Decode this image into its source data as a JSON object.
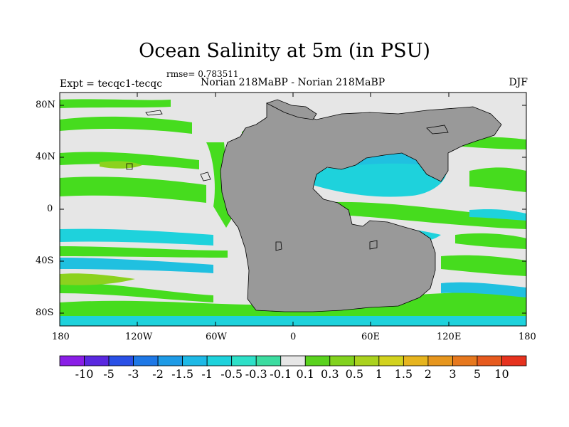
{
  "title": "Ocean Salinity at 5m (in PSU)",
  "rmse": "rmse= 0.783511",
  "left_header": "Expt = tecqc1-tecqc",
  "center_header": "Norian 218MaBP - Norian 218MaBP",
  "right_header": "DJF",
  "lat_labels": [
    "80N",
    "40N",
    "0",
    "40S",
    "80S"
  ],
  "lon_labels": [
    "180",
    "120W",
    "60W",
    "0",
    "60E",
    "120E",
    "180"
  ],
  "colorbar": {
    "labels": [
      "-10",
      "-5",
      "-3",
      "-2",
      "-1.5",
      "-1",
      "-0.5",
      "-0.3",
      "-0.1",
      "0.1",
      "0.3",
      "0.5",
      "1",
      "1.5",
      "2",
      "3",
      "5",
      "10"
    ],
    "colors": [
      "#8a1ee6",
      "#5a28e0",
      "#2a50e6",
      "#1e78e6",
      "#1e9be6",
      "#1eb9e6",
      "#1ed2dc",
      "#2ee0c8",
      "#3cdca0",
      "#e6e6e6",
      "#5ad21e",
      "#82d21e",
      "#aad21e",
      "#d2d21e",
      "#e6b41e",
      "#e6961e",
      "#e6781e",
      "#e65a1e",
      "#e6321e"
    ]
  },
  "colors": {
    "land": "#999999",
    "near_zero": "#e6e6e6",
    "green": "#46dc1e",
    "lime": "#8cd21e",
    "cyan": "#1ed2dc",
    "teal": "#20c0e0"
  }
}
